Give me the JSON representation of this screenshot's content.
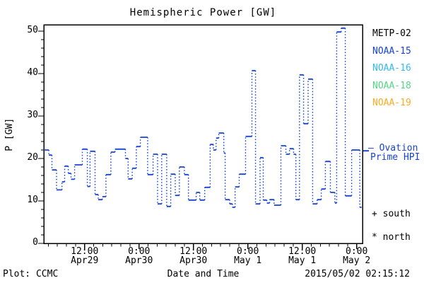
{
  "title": "Hemispheric Power [GW]",
  "axes": {
    "ylabel": "P [GW]",
    "xlabel": "Date and Time",
    "ylim": [
      0,
      51.5
    ],
    "xlim_hours": [
      3.0,
      73.3
    ],
    "y_major_ticks": [
      0,
      10,
      20,
      30,
      40,
      50
    ],
    "y_minor_step": 2,
    "x_minor_step": 2,
    "x_major_ticks": [
      {
        "hour": 12,
        "time": "12:00",
        "date": "Apr29"
      },
      {
        "hour": 24,
        "time": "0:00",
        "date": "Apr30"
      },
      {
        "hour": 36,
        "time": "12:00",
        "date": "Apr30"
      },
      {
        "hour": 48,
        "time": "0:00",
        "date": "May 1"
      },
      {
        "hour": 60,
        "time": "12:00",
        "date": "May 1"
      },
      {
        "hour": 72,
        "time": "0:00",
        "date": "May 2"
      }
    ]
  },
  "legend": {
    "satellites": [
      {
        "label": "METP-02",
        "color": "#000000"
      },
      {
        "label": "NOAA-15",
        "color": "#1744d1"
      },
      {
        "label": "NOAA-16",
        "color": "#33bbee"
      },
      {
        "label": "NOAA-18",
        "color": "#55d585"
      },
      {
        "label": "NOAA-19",
        "color": "#ffaa22"
      }
    ],
    "ovation_line1": "– Ovation",
    "ovation_line2": "Prime HPI",
    "south_marker": "+ south",
    "north_marker": "* north"
  },
  "footer": {
    "left": "Plot: CCMC",
    "right": "2015/05/02 02:15:12"
  },
  "chart_data": {
    "type": "line",
    "step": true,
    "title": "Hemispheric Power [GW]",
    "ylabel": "P [GW]",
    "xlabel": "Date and Time",
    "x_unit": "hours since 2015-04-29 00:00 UT",
    "line_color": "#1744d1",
    "ovation_marker_gw": 21.8,
    "end_hour": 73.1,
    "points": [
      [
        3.0,
        22.0
      ],
      [
        4.1,
        20.8
      ],
      [
        4.8,
        17.3
      ],
      [
        5.8,
        12.6
      ],
      [
        7.0,
        14.5
      ],
      [
        7.6,
        18.2
      ],
      [
        8.4,
        16.5
      ],
      [
        9.0,
        15.1
      ],
      [
        9.8,
        18.5
      ],
      [
        11.5,
        22.2
      ],
      [
        12.6,
        13.4
      ],
      [
        13.2,
        21.7
      ],
      [
        14.3,
        11.5
      ],
      [
        15.0,
        10.3
      ],
      [
        15.9,
        11.0
      ],
      [
        16.7,
        16.2
      ],
      [
        17.8,
        21.5
      ],
      [
        18.7,
        22.2
      ],
      [
        21.0,
        20.0
      ],
      [
        21.6,
        15.2
      ],
      [
        22.5,
        17.7
      ],
      [
        23.4,
        22.8
      ],
      [
        24.3,
        25.0
      ],
      [
        25.9,
        16.2
      ],
      [
        27.1,
        21.0
      ],
      [
        28.1,
        9.3
      ],
      [
        29.0,
        21.0
      ],
      [
        30.1,
        8.7
      ],
      [
        31.0,
        16.3
      ],
      [
        32.0,
        11.3
      ],
      [
        32.9,
        18.0
      ],
      [
        34.0,
        16.2
      ],
      [
        34.9,
        10.2
      ],
      [
        36.6,
        12.0
      ],
      [
        37.4,
        10.2
      ],
      [
        38.5,
        13.2
      ],
      [
        39.7,
        23.3
      ],
      [
        40.4,
        22.0
      ],
      [
        41.0,
        24.8
      ],
      [
        41.6,
        26.0
      ],
      [
        42.7,
        21.3
      ],
      [
        43.0,
        10.3
      ],
      [
        44.0,
        9.3
      ],
      [
        44.6,
        8.5
      ],
      [
        45.2,
        13.3
      ],
      [
        46.1,
        16.3
      ],
      [
        47.5,
        25.2
      ],
      [
        48.9,
        40.7
      ],
      [
        49.7,
        9.3
      ],
      [
        50.7,
        20.2
      ],
      [
        51.4,
        10.2
      ],
      [
        52.2,
        9.5
      ],
      [
        52.8,
        10.3
      ],
      [
        53.8,
        9.0
      ],
      [
        55.3,
        23.0
      ],
      [
        56.4,
        21.0
      ],
      [
        57.2,
        22.3
      ],
      [
        58.1,
        21.0
      ],
      [
        58.6,
        10.3
      ],
      [
        59.4,
        39.7
      ],
      [
        60.3,
        28.2
      ],
      [
        61.3,
        38.7
      ],
      [
        62.3,
        9.3
      ],
      [
        63.3,
        10.3
      ],
      [
        64.2,
        12.8
      ],
      [
        65.1,
        19.3
      ],
      [
        66.2,
        12.0
      ],
      [
        67.2,
        9.5
      ],
      [
        67.6,
        49.8
      ],
      [
        68.6,
        50.7
      ],
      [
        69.5,
        11.2
      ],
      [
        70.9,
        22.0
      ],
      [
        72.7,
        8.5
      ]
    ]
  }
}
